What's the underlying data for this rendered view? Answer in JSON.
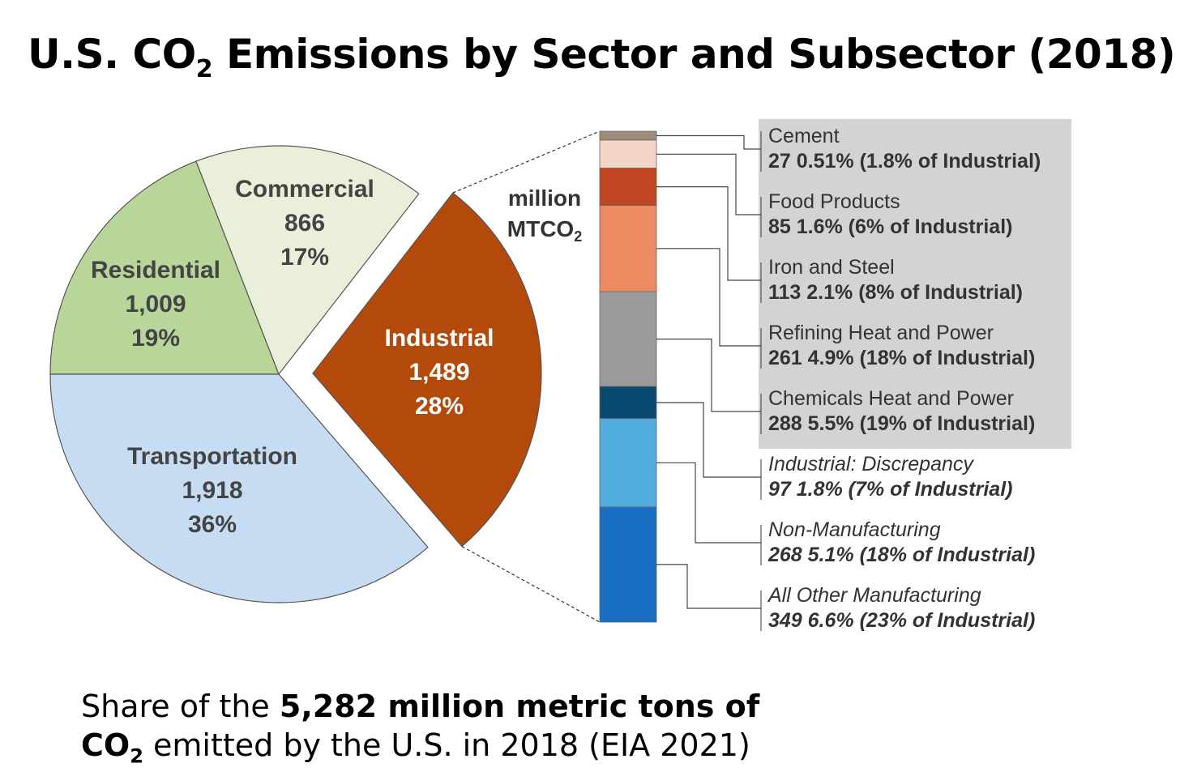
{
  "title": {
    "prefix": "U.S. CO",
    "subscript": "2",
    "suffix": " Emissions by Sector and Subsector (2018)"
  },
  "unit_label": {
    "line1": "million",
    "line2_prefix": "MTCO",
    "line2_subscript": "2"
  },
  "caption": {
    "part1": "Share of the ",
    "bold1": "5,282 million metric tons of",
    "bold2_prefix": "CO",
    "bold2_subscript": "2",
    "part2": " emitted by the U.S. in 2018 (EIA 2021)"
  },
  "chart_data": [
    {
      "type": "pie",
      "slices": [
        {
          "label": "Residential",
          "value_text": "1,009",
          "percent_text": "19%",
          "value": 1009,
          "percent": 19,
          "color": "#b9d69a"
        },
        {
          "label": "Commercial",
          "value_text": "866",
          "percent_text": "17%",
          "value": 866,
          "percent": 17,
          "color": "#e9efd9"
        },
        {
          "label": "Industrial",
          "value_text": "1,489",
          "percent_text": "28%",
          "value": 1489,
          "percent": 28,
          "color": "#b34a0c",
          "exploded": true
        },
        {
          "label": "Transportation",
          "value_text": "1,918",
          "percent_text": "36%",
          "value": 1918,
          "percent": 36,
          "color": "#c6dcf2"
        }
      ]
    },
    {
      "type": "bar",
      "stacked": true,
      "categories": [
        {
          "label": "Cement",
          "detail": "27  0.51% (1.8% of Industrial)",
          "value": 27,
          "color": "#9e8b79",
          "italic": false
        },
        {
          "label": "Food Products",
          "detail": "85  1.6% (6% of Industrial)",
          "value": 85,
          "color": "#f3d6c6",
          "italic": false
        },
        {
          "label": "Iron and Steel",
          "detail": "113  2.1% (8% of Industrial)",
          "value": 113,
          "color": "#c14622",
          "italic": false
        },
        {
          "label": "Refining Heat and Power",
          "detail": "261  4.9% (18% of Industrial)",
          "value": 261,
          "color": "#ee8a62",
          "italic": false
        },
        {
          "label": "Chemicals Heat and Power",
          "detail": "288  5.5% (19% of Industrial)",
          "value": 288,
          "color": "#9a9a9a",
          "italic": false
        },
        {
          "label": "Industrial: Discrepancy",
          "detail": "97  1.8% (7% of Industrial)",
          "value": 97,
          "color": "#0b4a70",
          "italic": true
        },
        {
          "label": "Non-Manufacturing",
          "detail": "268  5.1% (18% of Industrial)",
          "value": 268,
          "color": "#52acde",
          "italic": true
        },
        {
          "label": "All Other Manufacturing",
          "detail": "349  6.6% (23% of Industrial)",
          "value": 349,
          "color": "#1a6fc2",
          "italic": true
        }
      ]
    }
  ]
}
